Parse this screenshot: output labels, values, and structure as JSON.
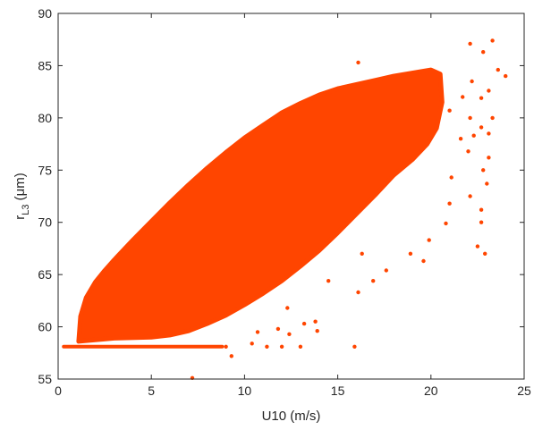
{
  "chart_data": {
    "type": "scatter",
    "xlabel": "U10 (m/s)",
    "ylabel": "r",
    "ylabel_subscript": "L3",
    "ylabel_units": " (μm)",
    "xlim": [
      0,
      25
    ],
    "ylim": [
      55,
      90
    ],
    "xticks": [
      0,
      5,
      10,
      15,
      20,
      25
    ],
    "yticks": [
      55,
      60,
      65,
      70,
      75,
      80,
      85,
      90
    ],
    "grid": false,
    "legend": "none",
    "marker_color": "#ff4500",
    "dense_envelope": [
      [
        1.1,
        58.6
      ],
      [
        1.2,
        61.0
      ],
      [
        1.5,
        62.8
      ],
      [
        2.0,
        64.3
      ],
      [
        2.5,
        65.4
      ],
      [
        3.0,
        66.4
      ],
      [
        4.0,
        68.3
      ],
      [
        5.0,
        70.1
      ],
      [
        6.0,
        71.9
      ],
      [
        7.0,
        73.6
      ],
      [
        8.0,
        75.2
      ],
      [
        9.0,
        76.7
      ],
      [
        10.0,
        78.1
      ],
      [
        11.0,
        79.3
      ],
      [
        12.0,
        80.5
      ],
      [
        13.0,
        81.4
      ],
      [
        14.0,
        82.2
      ],
      [
        15.0,
        82.8
      ],
      [
        16.0,
        83.2
      ],
      [
        17.0,
        83.6
      ],
      [
        18.0,
        84.0
      ],
      [
        19.0,
        84.3
      ],
      [
        20.0,
        84.6
      ],
      [
        20.5,
        84.2
      ],
      [
        20.6,
        81.5
      ],
      [
        20.3,
        79.0
      ],
      [
        19.8,
        77.5
      ],
      [
        19.0,
        76.0
      ],
      [
        18.0,
        74.5
      ],
      [
        17.0,
        72.6
      ],
      [
        16.0,
        70.8
      ],
      [
        15.0,
        69.0
      ],
      [
        14.0,
        67.3
      ],
      [
        13.0,
        65.8
      ],
      [
        12.0,
        64.4
      ],
      [
        11.0,
        63.2
      ],
      [
        10.0,
        62.1
      ],
      [
        9.0,
        61.1
      ],
      [
        8.0,
        60.3
      ],
      [
        7.0,
        59.6
      ],
      [
        6.0,
        59.2
      ],
      [
        5.0,
        59.0
      ],
      [
        3.0,
        58.9
      ],
      [
        1.1,
        58.6
      ]
    ],
    "floor_line": {
      "y": 58.1,
      "x_start": 0.3,
      "x_end": 8.8
    },
    "outliers": [
      [
        23.3,
        87.4
      ],
      [
        22.1,
        87.1
      ],
      [
        22.8,
        86.3
      ],
      [
        16.1,
        85.3
      ],
      [
        24.0,
        84.0
      ],
      [
        23.6,
        84.6
      ],
      [
        23.1,
        82.6
      ],
      [
        22.2,
        83.5
      ],
      [
        21.7,
        82.0
      ],
      [
        22.7,
        81.9
      ],
      [
        21.0,
        80.7
      ],
      [
        23.3,
        80.0
      ],
      [
        22.1,
        80.0
      ],
      [
        22.7,
        79.1
      ],
      [
        23.1,
        78.5
      ],
      [
        22.3,
        78.3
      ],
      [
        21.6,
        78.0
      ],
      [
        22.0,
        76.8
      ],
      [
        23.1,
        76.2
      ],
      [
        22.8,
        75.0
      ],
      [
        21.1,
        74.3
      ],
      [
        23.0,
        73.7
      ],
      [
        22.1,
        72.5
      ],
      [
        21.0,
        71.8
      ],
      [
        22.7,
        71.2
      ],
      [
        22.7,
        70.0
      ],
      [
        20.8,
        69.9
      ],
      [
        22.5,
        67.7
      ],
      [
        22.9,
        67.0
      ],
      [
        19.9,
        68.3
      ],
      [
        19.6,
        66.3
      ],
      [
        18.9,
        67.0
      ],
      [
        16.3,
        67.0
      ],
      [
        16.9,
        64.4
      ],
      [
        17.6,
        65.4
      ],
      [
        14.5,
        64.4
      ],
      [
        13.8,
        60.5
      ],
      [
        16.1,
        63.3
      ],
      [
        12.3,
        61.8
      ],
      [
        13.2,
        60.3
      ],
      [
        13.9,
        59.6
      ],
      [
        12.4,
        59.3
      ],
      [
        11.8,
        59.8
      ],
      [
        10.7,
        59.5
      ],
      [
        10.4,
        58.4
      ],
      [
        9.0,
        58.1
      ],
      [
        11.2,
        58.1
      ],
      [
        12.0,
        58.1
      ],
      [
        13.0,
        58.1
      ],
      [
        15.9,
        58.1
      ],
      [
        9.3,
        57.2
      ],
      [
        7.2,
        55.1
      ]
    ]
  }
}
